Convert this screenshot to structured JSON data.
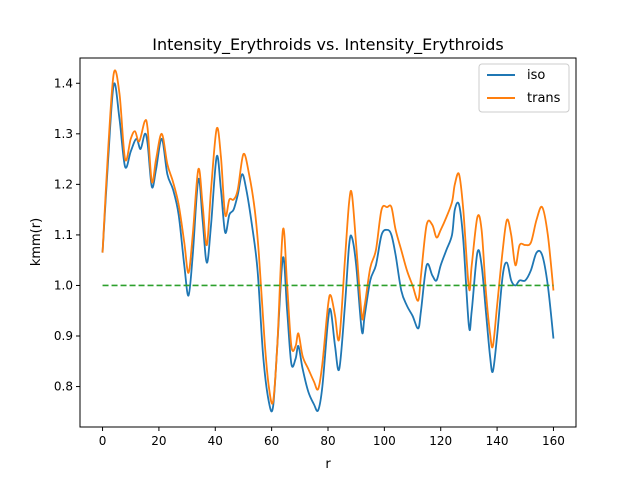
{
  "chart_data": {
    "type": "line",
    "title": "Intensity_Erythroids vs. Intensity_Erythroids",
    "xlabel": "r",
    "ylabel": "kmm(r)",
    "xlim": [
      -8,
      168
    ],
    "ylim": [
      0.72,
      1.45
    ],
    "xticks": [
      0,
      20,
      40,
      60,
      80,
      100,
      120,
      140,
      160
    ],
    "yticks": [
      0.8,
      0.9,
      1.0,
      1.1,
      1.2,
      1.3,
      1.4
    ],
    "xtick_labels": [
      "0",
      "20",
      "40",
      "60",
      "80",
      "100",
      "120",
      "140",
      "160"
    ],
    "ytick_labels": [
      "0.8",
      "0.9",
      "1.0",
      "1.1",
      "1.2",
      "1.3",
      "1.4"
    ],
    "legend_position": "top-right",
    "grid": false,
    "reference_line": {
      "y": 1.0,
      "style": "dashed",
      "color": "#2ca02c"
    },
    "series": [
      {
        "name": "iso",
        "color": "#1f77b4",
        "points": [
          [
            0,
            1.065
          ],
          [
            2,
            1.25
          ],
          [
            4,
            1.398
          ],
          [
            6,
            1.33
          ],
          [
            8,
            1.235
          ],
          [
            10,
            1.265
          ],
          [
            12,
            1.29
          ],
          [
            13.5,
            1.27
          ],
          [
            15,
            1.3
          ],
          [
            16,
            1.28
          ],
          [
            17.5,
            1.195
          ],
          [
            19,
            1.23
          ],
          [
            21,
            1.29
          ],
          [
            23,
            1.22
          ],
          [
            25,
            1.19
          ],
          [
            27,
            1.14
          ],
          [
            29,
            1.04
          ],
          [
            30.5,
            0.98
          ],
          [
            32,
            1.06
          ],
          [
            34,
            1.21
          ],
          [
            35.5,
            1.13
          ],
          [
            37,
            1.045
          ],
          [
            38.5,
            1.12
          ],
          [
            40.5,
            1.255
          ],
          [
            42,
            1.19
          ],
          [
            43.5,
            1.105
          ],
          [
            45,
            1.14
          ],
          [
            46.5,
            1.15
          ],
          [
            48,
            1.18
          ],
          [
            49.5,
            1.22
          ],
          [
            51,
            1.19
          ],
          [
            53,
            1.12
          ],
          [
            55,
            1.03
          ],
          [
            57,
            0.86
          ],
          [
            59,
            0.77
          ],
          [
            60.5,
            0.76
          ],
          [
            62,
            0.88
          ],
          [
            64,
            1.055
          ],
          [
            65.5,
            0.95
          ],
          [
            67,
            0.845
          ],
          [
            68.5,
            0.855
          ],
          [
            69.5,
            0.88
          ],
          [
            71,
            0.835
          ],
          [
            73,
            0.79
          ],
          [
            75,
            0.765
          ],
          [
            76.5,
            0.753
          ],
          [
            78,
            0.8
          ],
          [
            80,
            0.93
          ],
          [
            81,
            0.95
          ],
          [
            82.5,
            0.88
          ],
          [
            84,
            0.835
          ],
          [
            86,
            0.96
          ],
          [
            87.5,
            1.08
          ],
          [
            88.5,
            1.095
          ],
          [
            90,
            1.04
          ],
          [
            92,
            0.91
          ],
          [
            93,
            0.94
          ],
          [
            95,
            1.01
          ],
          [
            97,
            1.04
          ],
          [
            99,
            1.1
          ],
          [
            101,
            1.11
          ],
          [
            102.5,
            1.1
          ],
          [
            104,
            1.06
          ],
          [
            106,
            0.99
          ],
          [
            108,
            0.96
          ],
          [
            110,
            0.94
          ],
          [
            112,
            0.915
          ],
          [
            113,
            0.95
          ],
          [
            115,
            1.04
          ],
          [
            117,
            1.02
          ],
          [
            118.5,
            1.01
          ],
          [
            120,
            1.04
          ],
          [
            122,
            1.07
          ],
          [
            124,
            1.1
          ],
          [
            125,
            1.15
          ],
          [
            126.5,
            1.16
          ],
          [
            128,
            1.09
          ],
          [
            130,
            0.92
          ],
          [
            131,
            0.95
          ],
          [
            133,
            1.065
          ],
          [
            134.5,
            1.04
          ],
          [
            136,
            0.95
          ],
          [
            137.5,
            0.86
          ],
          [
            138.5,
            0.83
          ],
          [
            140,
            0.9
          ],
          [
            142,
            1.02
          ],
          [
            143.5,
            1.045
          ],
          [
            145,
            1.01
          ],
          [
            146.5,
            1.0
          ],
          [
            148,
            1.01
          ],
          [
            150,
            1.01
          ],
          [
            152,
            1.03
          ],
          [
            154,
            1.065
          ],
          [
            156,
            1.06
          ],
          [
            158,
            1.0
          ],
          [
            160,
            0.895
          ]
        ]
      },
      {
        "name": "trans",
        "color": "#ff7f0e",
        "points": [
          [
            0,
            1.065
          ],
          [
            2,
            1.27
          ],
          [
            4,
            1.42
          ],
          [
            6,
            1.38
          ],
          [
            8,
            1.25
          ],
          [
            10,
            1.29
          ],
          [
            11.5,
            1.305
          ],
          [
            13,
            1.285
          ],
          [
            15,
            1.325
          ],
          [
            16,
            1.31
          ],
          [
            17.5,
            1.205
          ],
          [
            19,
            1.25
          ],
          [
            21,
            1.3
          ],
          [
            23,
            1.24
          ],
          [
            25,
            1.205
          ],
          [
            27,
            1.16
          ],
          [
            29,
            1.085
          ],
          [
            30.5,
            1.025
          ],
          [
            32,
            1.1
          ],
          [
            34,
            1.23
          ],
          [
            35.5,
            1.16
          ],
          [
            37,
            1.08
          ],
          [
            38.5,
            1.19
          ],
          [
            40.5,
            1.31
          ],
          [
            42,
            1.255
          ],
          [
            43.5,
            1.14
          ],
          [
            45,
            1.17
          ],
          [
            46.5,
            1.17
          ],
          [
            48,
            1.19
          ],
          [
            50,
            1.26
          ],
          [
            52,
            1.22
          ],
          [
            54,
            1.15
          ],
          [
            55.5,
            1.06
          ],
          [
            57.5,
            0.89
          ],
          [
            59,
            0.8
          ],
          [
            60.5,
            0.77
          ],
          [
            62,
            0.88
          ],
          [
            64,
            1.11
          ],
          [
            65.5,
            1.0
          ],
          [
            67,
            0.88
          ],
          [
            68.5,
            0.88
          ],
          [
            69.5,
            0.905
          ],
          [
            71,
            0.86
          ],
          [
            73,
            0.835
          ],
          [
            75,
            0.81
          ],
          [
            76.5,
            0.795
          ],
          [
            78,
            0.845
          ],
          [
            80,
            0.96
          ],
          [
            81,
            0.98
          ],
          [
            82.5,
            0.94
          ],
          [
            84,
            0.895
          ],
          [
            86,
            1.05
          ],
          [
            87.5,
            1.165
          ],
          [
            88.5,
            1.18
          ],
          [
            90,
            1.08
          ],
          [
            92,
            0.94
          ],
          [
            93,
            0.96
          ],
          [
            95,
            1.035
          ],
          [
            97,
            1.07
          ],
          [
            99,
            1.15
          ],
          [
            101,
            1.155
          ],
          [
            102.5,
            1.155
          ],
          [
            104,
            1.11
          ],
          [
            106,
            1.07
          ],
          [
            108,
            1.03
          ],
          [
            110,
            1.0
          ],
          [
            112,
            0.97
          ],
          [
            113,
            1.02
          ],
          [
            115,
            1.12
          ],
          [
            117,
            1.12
          ],
          [
            118.5,
            1.095
          ],
          [
            120,
            1.11
          ],
          [
            122,
            1.135
          ],
          [
            124,
            1.165
          ],
          [
            125,
            1.2
          ],
          [
            126.5,
            1.22
          ],
          [
            128,
            1.15
          ],
          [
            130,
            0.995
          ],
          [
            131,
            1.04
          ],
          [
            133,
            1.135
          ],
          [
            134.5,
            1.11
          ],
          [
            136,
            0.99
          ],
          [
            137.5,
            0.905
          ],
          [
            138.5,
            0.88
          ],
          [
            140,
            0.96
          ],
          [
            142,
            1.07
          ],
          [
            143.5,
            1.13
          ],
          [
            145,
            1.1
          ],
          [
            146.5,
            1.04
          ],
          [
            148,
            1.08
          ],
          [
            150,
            1.08
          ],
          [
            152,
            1.085
          ],
          [
            154,
            1.13
          ],
          [
            156,
            1.155
          ],
          [
            158,
            1.1
          ],
          [
            160,
            0.99
          ]
        ]
      }
    ]
  }
}
